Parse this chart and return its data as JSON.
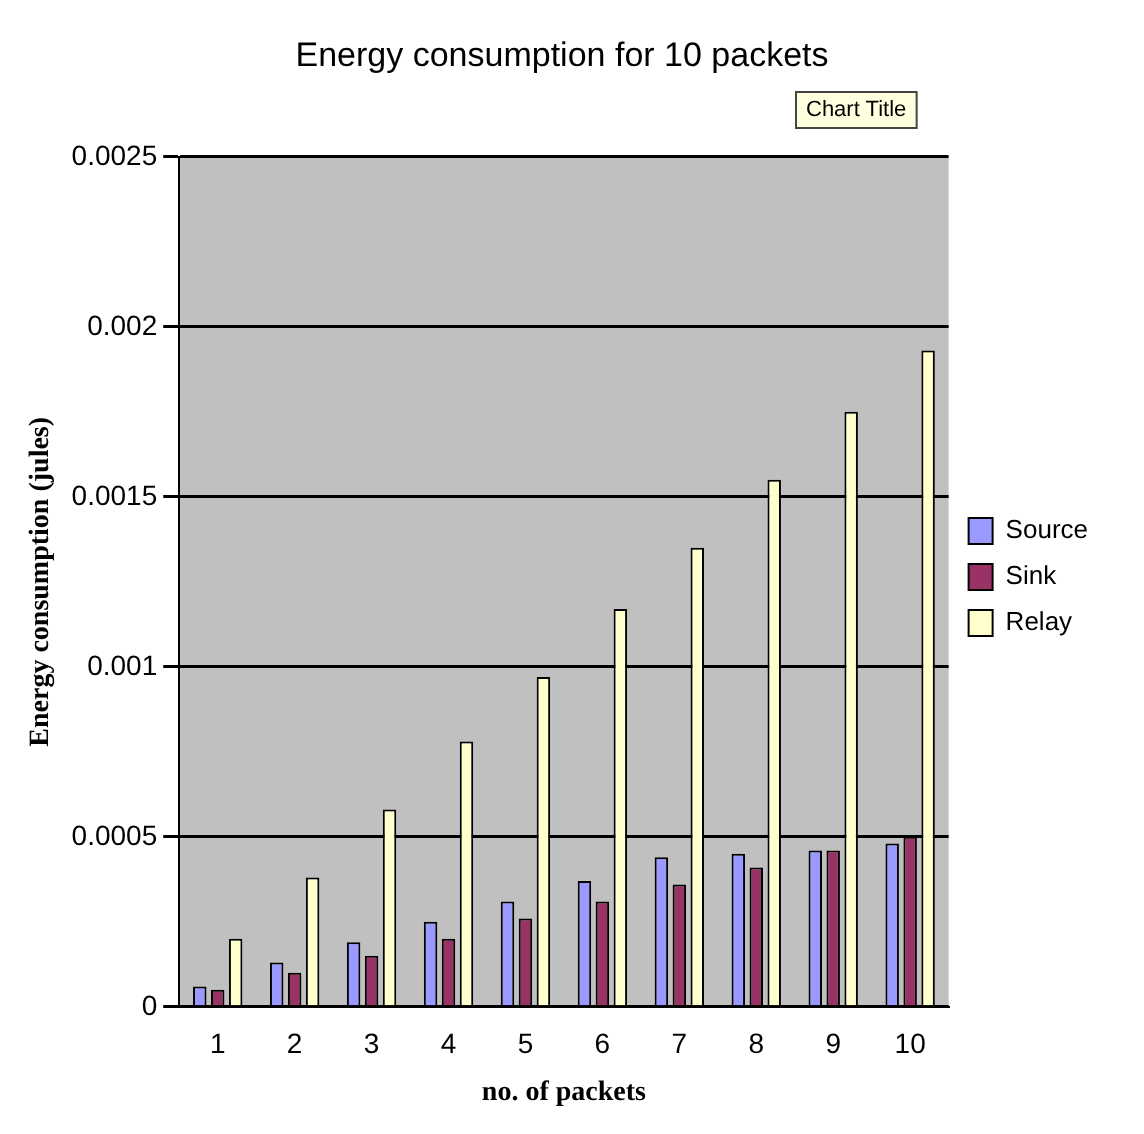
{
  "chart_data": {
    "type": "bar",
    "title": "Energy consumption for 10 packets",
    "xlabel": "no. of packets",
    "ylabel": "Energy consumption (jules)",
    "categories": [
      "1",
      "2",
      "3",
      "4",
      "5",
      "6",
      "7",
      "8",
      "9",
      "10"
    ],
    "series": [
      {
        "name": "Source",
        "color": "#9999ff",
        "values": [
          6e-05,
          0.00013,
          0.00019,
          0.00025,
          0.00031,
          0.00037,
          0.00044,
          0.00045,
          0.00046,
          0.00048
        ]
      },
      {
        "name": "Sink",
        "color": "#993366",
        "values": [
          5e-05,
          0.0001,
          0.00015,
          0.0002,
          0.00026,
          0.00031,
          0.00036,
          0.00041,
          0.00046,
          0.0005
        ]
      },
      {
        "name": "Relay",
        "color": "#ffffcc",
        "values": [
          0.0002,
          0.00038,
          0.00058,
          0.00078,
          0.00097,
          0.00117,
          0.00135,
          0.00155,
          0.00175,
          0.00193
        ]
      }
    ],
    "ylim": [
      0,
      0.0025
    ],
    "yticks": [
      0,
      0.0005,
      0.001,
      0.0015,
      0.002,
      0.0025
    ],
    "grid": "y",
    "legend": "right",
    "annotations": [
      "Chart Title"
    ]
  }
}
